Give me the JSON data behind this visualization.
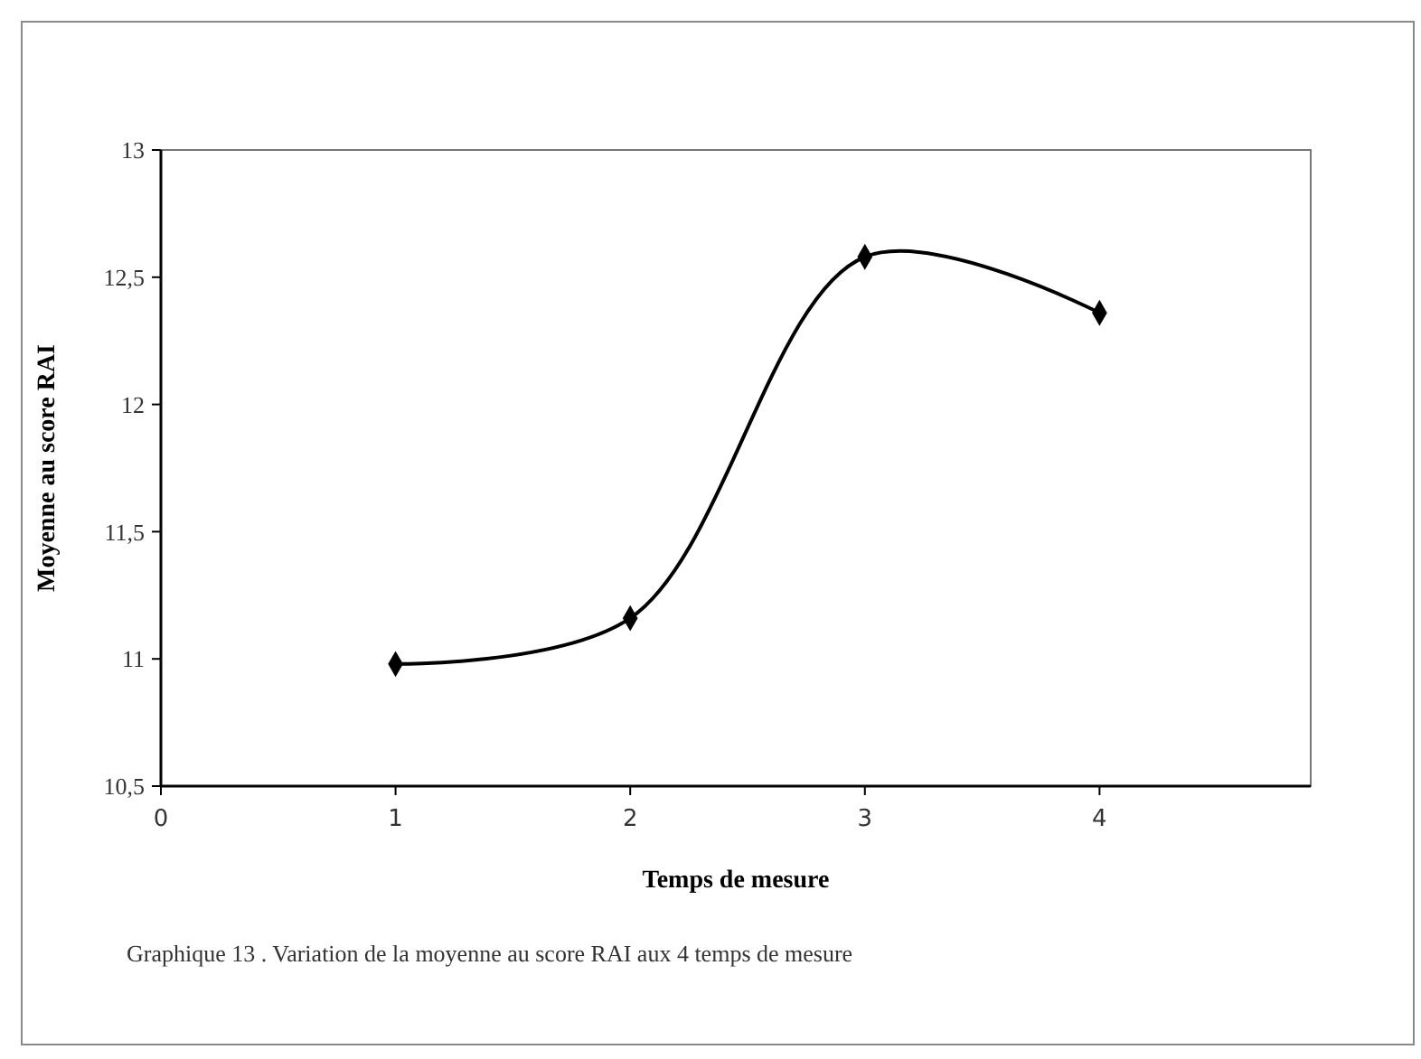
{
  "chart_data": {
    "type": "line",
    "xlabel": "Temps de mesure",
    "ylabel": "Moyenne au score RAI",
    "annotations": [
      "Graphique 13 . Variation de la moyenne au score RAI aux 4 temps de mesure"
    ],
    "x": [
      1,
      2,
      3,
      4
    ],
    "series": [
      {
        "color": "#000000",
        "values": [
          10.98,
          11.16,
          12.58,
          12.36
        ]
      }
    ],
    "xlim": [
      0,
      4.9
    ],
    "xticks": [
      0,
      1,
      2,
      3,
      4
    ],
    "ylim": [
      10.5,
      13
    ],
    "yticks": [
      {
        "value": 10.5,
        "label": "10,5"
      },
      {
        "value": 11,
        "label": "11"
      },
      {
        "value": 11.5,
        "label": "11,5"
      },
      {
        "value": 12,
        "label": "12"
      },
      {
        "value": 12.5,
        "label": "12,5"
      },
      {
        "value": 13,
        "label": "13"
      }
    ],
    "marker": "diamond",
    "line_style": "solid"
  }
}
